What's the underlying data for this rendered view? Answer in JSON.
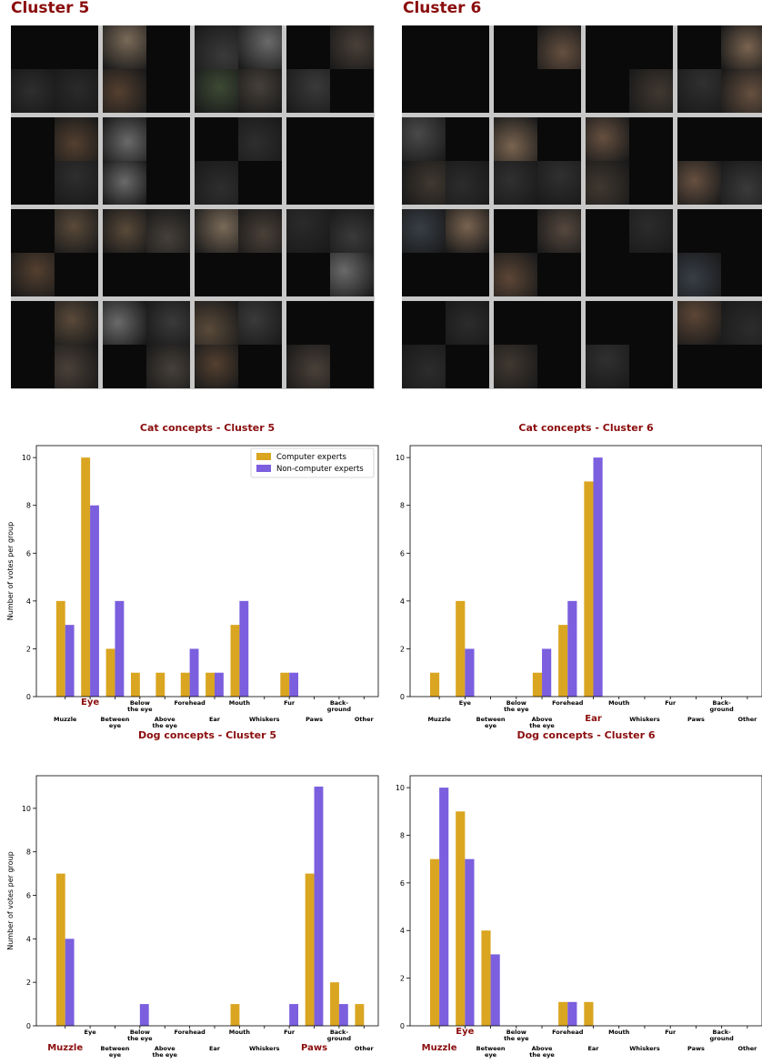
{
  "clusters": [
    {
      "title": "Cluster 5"
    },
    {
      "title": "Cluster 6"
    }
  ],
  "colors": {
    "computer": "#daa520",
    "noncomputer": "#7b5fde",
    "title": "#8b0d0d",
    "highlight": "#8b0d0d"
  },
  "chart_data": [
    {
      "type": "bar",
      "title": "Cat concepts - Cluster 5",
      "ylabel": "Number of votes per group",
      "ylim": [
        0,
        10.5
      ],
      "yticks": [
        0,
        2,
        4,
        6,
        8,
        10
      ],
      "categories": [
        "Muzzle",
        "Eye",
        "Between eye",
        "Below the eye",
        "Above the eye",
        "Forehead",
        "Ear",
        "Mouth",
        "Whiskers",
        "Fur",
        "Paws",
        "Back-ground",
        "Other"
      ],
      "highlighted": [
        "Eye"
      ],
      "legend": "top-right",
      "series": [
        {
          "name": "Computer experts",
          "values": [
            4,
            10,
            2,
            1,
            1,
            1,
            1,
            3,
            0,
            1,
            0,
            0,
            0
          ]
        },
        {
          "name": "Non-computer experts",
          "values": [
            3,
            8,
            4,
            0,
            0,
            2,
            1,
            4,
            0,
            1,
            0,
            0,
            0
          ]
        }
      ]
    },
    {
      "type": "bar",
      "title": "Cat concepts - Cluster 6",
      "ylabel": "",
      "ylim": [
        0,
        10.5
      ],
      "yticks": [
        0,
        2,
        4,
        6,
        8,
        10
      ],
      "categories": [
        "Muzzle",
        "Eye",
        "Between eye",
        "Below the eye",
        "Above the eye",
        "Forehead",
        "Ear",
        "Mouth",
        "Whiskers",
        "Fur",
        "Paws",
        "Back-ground",
        "Other"
      ],
      "highlighted": [
        "Ear"
      ],
      "legend": "",
      "series": [
        {
          "values": [
            1,
            4,
            0,
            0,
            1,
            3,
            9,
            0,
            0,
            0,
            0,
            0,
            0
          ]
        },
        {
          "values": [
            0,
            2,
            0,
            0,
            2,
            4,
            10,
            0,
            0,
            0,
            0,
            0,
            0
          ]
        }
      ]
    },
    {
      "type": "bar",
      "title": "Dog concepts - Cluster 5",
      "ylabel": "Number of votes per group",
      "ylim": [
        0,
        11.5
      ],
      "yticks": [
        0,
        2,
        4,
        6,
        8,
        10
      ],
      "categories": [
        "Muzzle",
        "Eye",
        "Between eye",
        "Below the eye",
        "Above the eye",
        "Forehead",
        "Ear",
        "Mouth",
        "Whiskers",
        "Fur",
        "Paws",
        "Back-ground",
        "Other"
      ],
      "highlighted": [
        "Muzzle",
        "Paws"
      ],
      "legend": "",
      "series": [
        {
          "values": [
            7,
            0,
            0,
            0,
            0,
            0,
            0,
            1,
            0,
            0,
            7,
            2,
            1
          ]
        },
        {
          "values": [
            4,
            0,
            0,
            1,
            0,
            0,
            0,
            0,
            0,
            1,
            11,
            1,
            0
          ]
        }
      ]
    },
    {
      "type": "bar",
      "title": "Dog concepts - Cluster 6",
      "ylabel": "",
      "ylim": [
        0,
        10.5
      ],
      "yticks": [
        0,
        2,
        4,
        6,
        8,
        10
      ],
      "categories": [
        "Muzzle",
        "Eye",
        "Between eye",
        "Below the eye",
        "Above the eye",
        "Forehead",
        "Ear",
        "Mouth",
        "Whiskers",
        "Fur",
        "Paws",
        "Back-ground",
        "Other"
      ],
      "highlighted": [
        "Muzzle",
        "Eye"
      ],
      "legend": "",
      "series": [
        {
          "values": [
            7,
            9,
            4,
            0,
            0,
            1,
            1,
            0,
            0,
            0,
            0,
            0,
            0
          ]
        },
        {
          "values": [
            10,
            7,
            3,
            0,
            0,
            1,
            0,
            0,
            0,
            0,
            0,
            0,
            0
          ]
        }
      ]
    }
  ]
}
